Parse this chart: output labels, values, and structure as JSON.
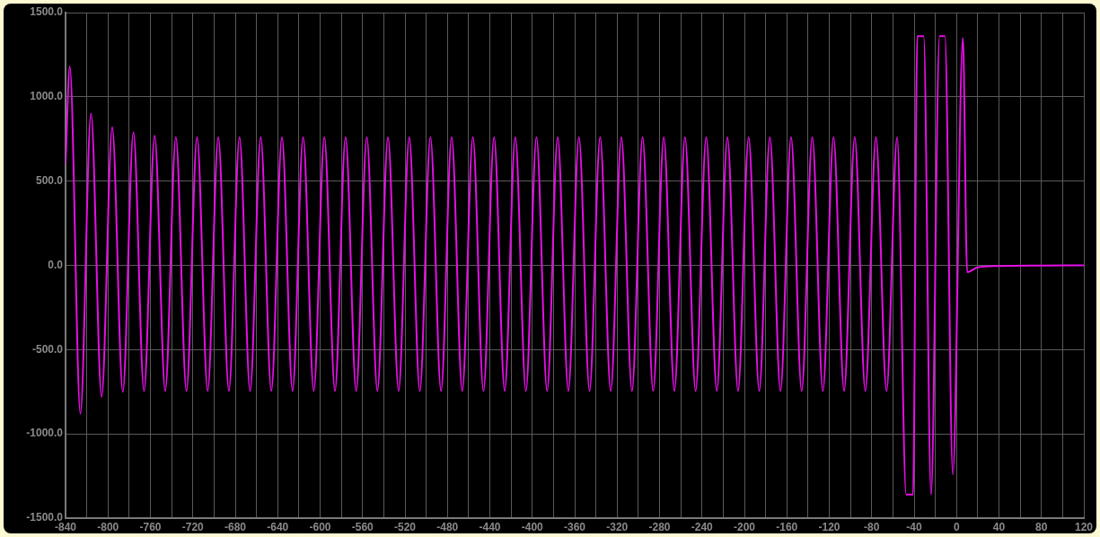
{
  "chart_data": {
    "type": "line",
    "xlim": [
      -840,
      120
    ],
    "xticks": [
      -840,
      {
        "value": -820,
        "label": null
      },
      -800,
      {
        "value": -780,
        "label": null
      },
      -760,
      {
        "value": -740,
        "label": null
      },
      -720,
      {
        "value": -700,
        "label": null
      },
      -680,
      {
        "value": -660,
        "label": null
      },
      -640,
      {
        "value": -620,
        "label": null
      },
      -600,
      {
        "value": -580,
        "label": null
      },
      -560,
      {
        "value": -540,
        "label": null
      },
      -520,
      {
        "value": -500,
        "label": null
      },
      -480,
      {
        "value": -460,
        "label": null
      },
      -440,
      {
        "value": -420,
        "label": null
      },
      -400,
      {
        "value": -380,
        "label": null
      },
      -360,
      {
        "value": -340,
        "label": null
      },
      -320,
      {
        "value": -300,
        "label": null
      },
      -280,
      {
        "value": -260,
        "label": null
      },
      -240,
      {
        "value": -220,
        "label": null
      },
      -200,
      {
        "value": -180,
        "label": null
      },
      -160,
      {
        "value": -140,
        "label": null
      },
      -120,
      {
        "value": -100,
        "label": null
      },
      -80,
      {
        "value": -60,
        "label": null
      },
      -40,
      {
        "value": -20,
        "label": null
      },
      0,
      {
        "value": 20,
        "label": null
      },
      40,
      {
        "value": 60,
        "label": null
      },
      80,
      {
        "value": 100,
        "label": null
      },
      120
    ],
    "ylim": [
      -1500,
      1500
    ],
    "yticks": [
      {
        "value": -1500,
        "label": "-1500.0"
      },
      {
        "value": -1000,
        "label": "-1000.0"
      },
      {
        "value": -500,
        "label": "-500.0"
      },
      {
        "value": 0,
        "label": "0.0"
      },
      {
        "value": 500,
        "label": "500.0"
      },
      {
        "value": 1000,
        "label": "1000.0"
      },
      {
        "value": 1500,
        "label": "1500.0"
      }
    ],
    "grid": true,
    "marker": "none",
    "line_style": "solid",
    "series": [
      {
        "color": "#e60fe6",
        "x": [
          -840,
          -836,
          -826,
          -816,
          -806,
          -796,
          -786,
          -776,
          -766,
          -756,
          -746,
          -736,
          -726,
          -716,
          -706,
          -696,
          -686,
          -676,
          -666,
          -656,
          -646,
          -636,
          -626,
          -616,
          -606,
          -596,
          -586,
          -576,
          -566,
          -556,
          -546,
          -536,
          -526,
          -516,
          -506,
          -496,
          -486,
          -476,
          -466,
          -456,
          -446,
          -436,
          -426,
          -416,
          -406,
          -396,
          -386,
          -376,
          -366,
          -356,
          -346,
          -336,
          -326,
          -316,
          -306,
          -296,
          -286,
          -276,
          -266,
          -256,
          -246,
          -236,
          -226,
          -216,
          -206,
          -196,
          -186,
          -176,
          -166,
          -156,
          -146,
          -136,
          -126,
          -116,
          -106,
          -96,
          -86,
          -76,
          -66,
          -56,
          -47.5,
          -41,
          -37,
          -31,
          -24,
          -16,
          -11,
          -3.5,
          6,
          10,
          20,
          40,
          80,
          120
        ],
        "values": [
          600,
          1180,
          -880,
          900,
          -780,
          820,
          -750,
          790,
          -745,
          770,
          -745,
          760,
          -745,
          760,
          -745,
          760,
          -745,
          760,
          -745,
          760,
          -745,
          760,
          -745,
          760,
          -745,
          760,
          -745,
          760,
          -745,
          760,
          -745,
          760,
          -745,
          760,
          -745,
          760,
          -745,
          760,
          -745,
          760,
          -745,
          760,
          -745,
          760,
          -745,
          760,
          -745,
          760,
          -745,
          760,
          -745,
          760,
          -745,
          760,
          -745,
          760,
          -745,
          760,
          -745,
          760,
          -745,
          760,
          -745,
          760,
          -745,
          760,
          -745,
          760,
          -745,
          760,
          -745,
          760,
          -745,
          760,
          -745,
          760,
          -745,
          760,
          -745,
          760,
          -1360,
          -1360,
          1360,
          1360,
          -1360,
          1360,
          1360,
          -1240,
          1350,
          -40,
          -12,
          -4,
          -1,
          0
        ]
      }
    ]
  }
}
